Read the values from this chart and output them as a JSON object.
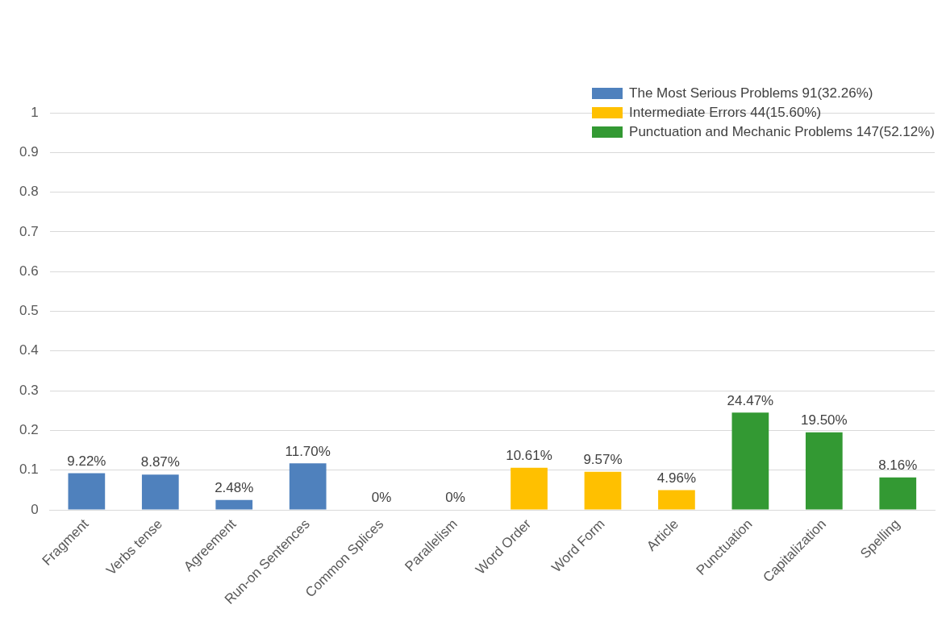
{
  "chart_data": {
    "type": "bar",
    "categories": [
      "Fragment",
      "Verbs tense",
      "Agreement",
      "Run-on Sentences",
      "Common Splices",
      "Parallelism",
      "Word Order",
      "Word Form",
      "Article",
      "Punctuation",
      "Capitalization",
      "Spelling"
    ],
    "series": [
      {
        "name": "The Most Serious Problems 91(32.26%)",
        "color": "#4f81bd",
        "values": [
          0.0922,
          0.0887,
          0.0248,
          0.117,
          0,
          0,
          null,
          null,
          null,
          null,
          null,
          null
        ],
        "value_labels": [
          "9.22%",
          "8.87%",
          "2.48%",
          "11.70%",
          "0%",
          "0%",
          null,
          null,
          null,
          null,
          null,
          null
        ]
      },
      {
        "name": "Intermediate Errors 44(15.60%)",
        "color": "#ffc000",
        "values": [
          null,
          null,
          null,
          null,
          null,
          null,
          0.1061,
          0.0957,
          0.0496,
          null,
          null,
          null
        ],
        "value_labels": [
          null,
          null,
          null,
          null,
          null,
          null,
          "10.61%",
          "9.57%",
          "4.96%",
          null,
          null,
          null
        ]
      },
      {
        "name": "Punctuation and Mechanic Problems 147(52.12%)",
        "color": "#339933",
        "values": [
          null,
          null,
          null,
          null,
          null,
          null,
          null,
          null,
          null,
          0.2447,
          0.195,
          0.0816
        ],
        "value_labels": [
          null,
          null,
          null,
          null,
          null,
          null,
          null,
          null,
          null,
          "24.47%",
          "19.50%",
          "8.16%"
        ]
      }
    ],
    "ylim": [
      0,
      1
    ],
    "yticks": [
      0,
      0.1,
      0.2,
      0.3,
      0.4,
      0.5,
      0.6,
      0.7,
      0.8,
      0.9,
      1
    ],
    "grid": "y",
    "legend": "top right"
  }
}
